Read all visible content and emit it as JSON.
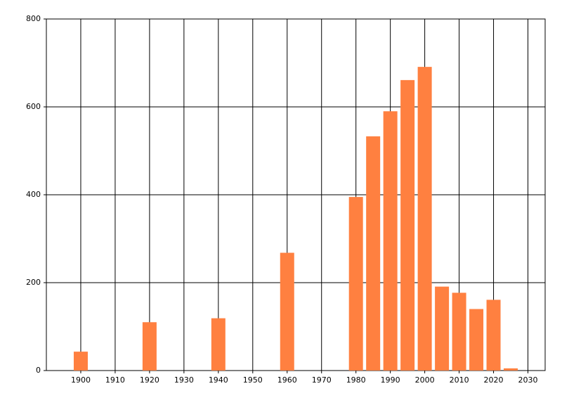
{
  "chart_data": {
    "type": "bar",
    "x": [
      1900,
      1920,
      1940,
      1960,
      1980,
      1985,
      1990,
      1995,
      2000,
      2005,
      2010,
      2015,
      2020,
      2025
    ],
    "values": [
      43,
      110,
      119,
      268,
      395,
      533,
      590,
      661,
      691,
      191,
      177,
      140,
      161,
      5
    ],
    "color": "#ff8040",
    "xlim": [
      1890,
      2035
    ],
    "xticks": [
      1900,
      1910,
      1920,
      1930,
      1940,
      1950,
      1960,
      1970,
      1980,
      1990,
      2000,
      2010,
      2020,
      2030
    ],
    "ylim": [
      0,
      800
    ],
    "yticks": [
      0,
      200,
      400,
      600,
      800
    ],
    "grid": true
  }
}
